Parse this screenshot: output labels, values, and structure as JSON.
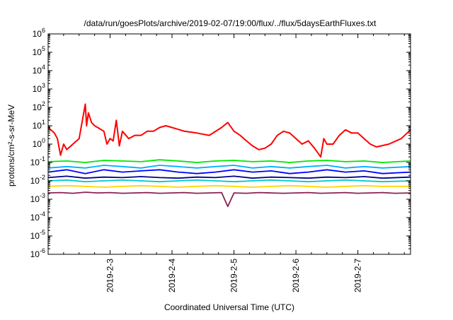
{
  "chart_data": {
    "type": "line",
    "title": "/data/run/goesPlots/archive/2019-02-07/19:00/flux/../flux/5daysEarthFluxes.txt",
    "xlabel": "Coordinated Universal Time (UTC)",
    "ylabel": "protons/cm²-s-sr-MeV",
    "yscale": "log",
    "xlim": [
      2.0,
      7.85
    ],
    "ylim_exponents": [
      -6,
      6
    ],
    "y_ticks": [
      {
        "base": "10",
        "exp": "6"
      },
      {
        "base": "10",
        "exp": "5"
      },
      {
        "base": "10",
        "exp": "4"
      },
      {
        "base": "10",
        "exp": "3"
      },
      {
        "base": "10",
        "exp": "2"
      },
      {
        "base": "10",
        "exp": "1"
      },
      {
        "base": "10",
        "exp": "0"
      },
      {
        "base": "10",
        "exp": "-1"
      },
      {
        "base": "10",
        "exp": "-2"
      },
      {
        "base": "10",
        "exp": "-3"
      },
      {
        "base": "10",
        "exp": "-4"
      },
      {
        "base": "10",
        "exp": "-5"
      },
      {
        "base": "10",
        "exp": "-6"
      }
    ],
    "x_ticks": [
      {
        "value": 3,
        "label": "2019-2-3"
      },
      {
        "value": 4,
        "label": "2019-2-4"
      },
      {
        "value": 5,
        "label": "2019-2-5"
      },
      {
        "value": 6,
        "label": "2019-2-6"
      },
      {
        "value": 7,
        "label": "2019-2-7"
      }
    ],
    "grid": false,
    "series": [
      {
        "color": "#ff0000",
        "x": [
          2.0,
          2.1,
          2.15,
          2.2,
          2.25,
          2.3,
          2.4,
          2.5,
          2.6,
          2.62,
          2.65,
          2.7,
          2.75,
          2.8,
          2.9,
          2.95,
          3.0,
          3.05,
          3.1,
          3.15,
          3.2,
          3.3,
          3.4,
          3.5,
          3.6,
          3.7,
          3.8,
          3.9,
          4.0,
          4.2,
          4.4,
          4.6,
          4.8,
          4.9,
          5.0,
          5.1,
          5.2,
          5.3,
          5.4,
          5.5,
          5.6,
          5.7,
          5.8,
          5.9,
          6.0,
          6.1,
          6.2,
          6.3,
          6.4,
          6.45,
          6.5,
          6.6,
          6.7,
          6.8,
          6.9,
          7.0,
          7.1,
          7.2,
          7.3,
          7.5,
          7.7,
          7.85
        ],
        "y": [
          8,
          4,
          2,
          0.25,
          1,
          0.5,
          1,
          2,
          150,
          10,
          50,
          15,
          10,
          8,
          5,
          1,
          2,
          1.5,
          20,
          0.8,
          5,
          2,
          3,
          3,
          5,
          5,
          8,
          10,
          8,
          5,
          4,
          3,
          8,
          15,
          5,
          3,
          1.5,
          0.8,
          0.5,
          0.6,
          1,
          3,
          5,
          4,
          2,
          1,
          1.5,
          0.6,
          0.2,
          2,
          1,
          1,
          3,
          6,
          4,
          4,
          2,
          1,
          0.7,
          1,
          2,
          6
        ]
      },
      {
        "color": "#00e600",
        "x": [
          2.0,
          2.3,
          2.6,
          2.9,
          3.2,
          3.5,
          3.8,
          4.1,
          4.4,
          4.7,
          5.0,
          5.3,
          5.6,
          5.9,
          6.2,
          6.5,
          6.8,
          7.1,
          7.4,
          7.85
        ],
        "y": [
          0.11,
          0.12,
          0.1,
          0.13,
          0.12,
          0.11,
          0.14,
          0.12,
          0.1,
          0.12,
          0.13,
          0.11,
          0.12,
          0.1,
          0.12,
          0.13,
          0.11,
          0.12,
          0.1,
          0.12
        ]
      },
      {
        "color": "#00b0ff",
        "x": [
          2.0,
          2.3,
          2.6,
          2.9,
          3.2,
          3.5,
          3.8,
          4.1,
          4.4,
          4.7,
          5.0,
          5.3,
          5.6,
          5.9,
          6.2,
          6.5,
          6.8,
          7.1,
          7.4,
          7.85
        ],
        "y": [
          0.05,
          0.06,
          0.05,
          0.07,
          0.06,
          0.05,
          0.07,
          0.06,
          0.05,
          0.06,
          0.07,
          0.05,
          0.06,
          0.05,
          0.06,
          0.07,
          0.05,
          0.06,
          0.05,
          0.06
        ]
      },
      {
        "color": "#0000ff",
        "x": [
          2.0,
          2.3,
          2.6,
          2.9,
          3.2,
          3.5,
          3.8,
          4.1,
          4.4,
          4.7,
          5.0,
          5.3,
          5.6,
          5.9,
          6.2,
          6.5,
          6.8,
          7.1,
          7.4,
          7.85
        ],
        "y": [
          0.03,
          0.04,
          0.025,
          0.04,
          0.03,
          0.035,
          0.04,
          0.03,
          0.025,
          0.03,
          0.04,
          0.03,
          0.035,
          0.025,
          0.03,
          0.04,
          0.03,
          0.035,
          0.025,
          0.03
        ]
      },
      {
        "color": "#00008b",
        "x": [
          2.0,
          2.3,
          2.6,
          2.9,
          3.2,
          3.5,
          3.8,
          4.1,
          4.4,
          4.7,
          5.0,
          5.3,
          5.6,
          5.9,
          6.2,
          6.5,
          6.8,
          7.1,
          7.4,
          7.85
        ],
        "y": [
          0.015,
          0.018,
          0.014,
          0.016,
          0.015,
          0.017,
          0.015,
          0.014,
          0.016,
          0.015,
          0.018,
          0.014,
          0.016,
          0.015,
          0.014,
          0.016,
          0.015,
          0.017,
          0.014,
          0.016
        ]
      },
      {
        "color": "#00c8c8",
        "x": [
          2.0,
          2.3,
          2.6,
          2.9,
          3.2,
          3.5,
          3.8,
          4.1,
          4.4,
          4.7,
          5.0,
          5.3,
          5.6,
          5.9,
          6.2,
          6.5,
          6.8,
          7.1,
          7.4,
          7.85
        ],
        "y": [
          0.01,
          0.011,
          0.009,
          0.01,
          0.011,
          0.01,
          0.009,
          0.01,
          0.011,
          0.01,
          0.009,
          0.01,
          0.011,
          0.01,
          0.009,
          0.01,
          0.011,
          0.01,
          0.009,
          0.01
        ]
      },
      {
        "color": "#ffd700",
        "x": [
          2.0,
          2.3,
          2.6,
          2.9,
          3.2,
          3.5,
          3.8,
          4.1,
          4.4,
          4.7,
          5.0,
          5.3,
          5.6,
          5.9,
          6.2,
          6.5,
          6.8,
          7.1,
          7.4,
          7.85
        ],
        "y": [
          0.005,
          0.0055,
          0.005,
          0.0045,
          0.005,
          0.0055,
          0.005,
          0.0045,
          0.005,
          0.0055,
          0.005,
          0.0045,
          0.005,
          0.0055,
          0.005,
          0.0045,
          0.005,
          0.0055,
          0.005,
          0.005
        ]
      },
      {
        "color": "#8b2252",
        "x": [
          2.0,
          2.2,
          2.4,
          2.6,
          2.8,
          3.0,
          3.2,
          3.4,
          3.6,
          3.8,
          4.0,
          4.2,
          4.4,
          4.6,
          4.8,
          4.9,
          5.0,
          5.2,
          5.4,
          5.6,
          5.8,
          6.0,
          6.2,
          6.4,
          6.6,
          6.8,
          7.0,
          7.2,
          7.4,
          7.6,
          7.85
        ],
        "y": [
          0.0022,
          0.0023,
          0.0021,
          0.0024,
          0.0022,
          0.0023,
          0.0021,
          0.0022,
          0.0023,
          0.0021,
          0.0022,
          0.0023,
          0.0021,
          0.0022,
          0.0023,
          0.0004,
          0.0022,
          0.0021,
          0.0023,
          0.0022,
          0.0021,
          0.0022,
          0.0023,
          0.0021,
          0.0022,
          0.0023,
          0.0021,
          0.0022,
          0.0023,
          0.0021,
          0.0022
        ]
      }
    ]
  }
}
